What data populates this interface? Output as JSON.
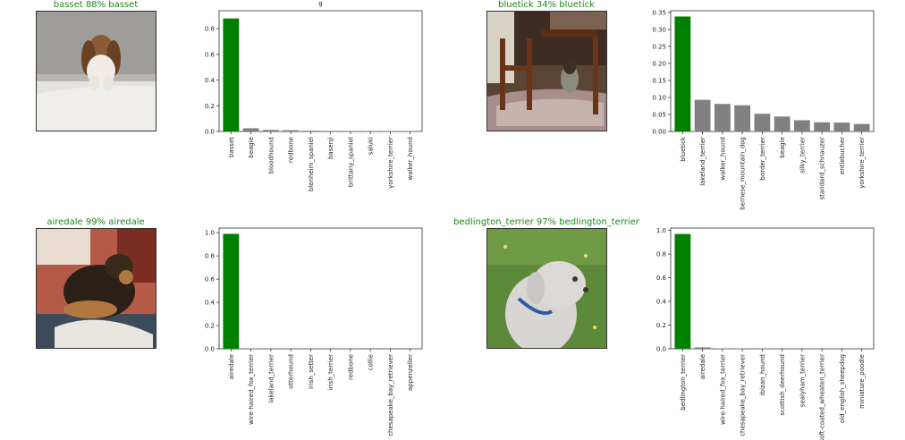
{
  "panels": [
    {
      "title": "basset 88% basset",
      "title_color": "#1a8a1a",
      "image": "basset-dog-photo",
      "stray_label": "g",
      "chart_data": {
        "type": "bar",
        "categories": [
          "basset",
          "beagle",
          "bloodhound",
          "redbone",
          "blenheim_spaniel",
          "basenji",
          "brittany_spaniel",
          "saluki",
          "yorkshire_terrier",
          "walker_hound"
        ],
        "values": [
          0.88,
          0.025,
          0.012,
          0.01,
          0.006,
          0.005,
          0.004,
          0.003,
          0.002,
          0.002
        ],
        "ylim": [
          0,
          0.94
        ],
        "yticks": [
          "0.0",
          "0.2",
          "0.4",
          "0.6",
          "0.8"
        ],
        "ytick_values": [
          0,
          0.2,
          0.4,
          0.6,
          0.8
        ],
        "highlight_color": "#008000",
        "bar_color": "#808080"
      }
    },
    {
      "title": "bluetick 34% bluetick",
      "title_color": "#1a8a1a",
      "image": "bluetick-dog-photo",
      "chart_data": {
        "type": "bar",
        "categories": [
          "bluetick",
          "lakeland_terrier",
          "walker_hound",
          "bernese_mountain_dog",
          "border_terrier",
          "beagle",
          "silky_terrier",
          "standard_schnauzer",
          "entlebucher",
          "yorkshire_terrier"
        ],
        "values": [
          0.338,
          0.093,
          0.081,
          0.077,
          0.052,
          0.044,
          0.033,
          0.027,
          0.026,
          0.022
        ],
        "ylim": [
          0,
          0.355
        ],
        "yticks": [
          "0.00",
          "0.05",
          "0.10",
          "0.15",
          "0.20",
          "0.25",
          "0.30",
          "0.35"
        ],
        "ytick_values": [
          0,
          0.05,
          0.1,
          0.15,
          0.2,
          0.25,
          0.3,
          0.35
        ],
        "highlight_color": "#008000",
        "bar_color": "#808080"
      }
    },
    {
      "title": "airedale 99% airedale",
      "title_color": "#1a8a1a",
      "image": "airedale-dog-photo",
      "chart_data": {
        "type": "bar",
        "categories": [
          "airedale",
          "wire-haired_fox_terrier",
          "lakeland_terrier",
          "otterhound",
          "irish_setter",
          "irish_terrier",
          "redbone",
          "collie",
          "chesapeake_bay_retriever",
          "appenzeller"
        ],
        "values": [
          0.99,
          0.002,
          0.001,
          0.001,
          0.001,
          0.001,
          0.001,
          0.0005,
          0.0005,
          0.0005
        ],
        "ylim": [
          0,
          1.04
        ],
        "yticks": [
          "0.0",
          "0.2",
          "0.4",
          "0.6",
          "0.8",
          "1.0"
        ],
        "ytick_values": [
          0,
          0.2,
          0.4,
          0.6,
          0.8,
          1.0
        ],
        "highlight_color": "#008000",
        "bar_color": "#808080"
      }
    },
    {
      "title": "bedlington_terrier 97% bedlington_terrier",
      "title_color": "#1a8a1a",
      "image": "bedlington-terrier-dog-photo",
      "chart_data": {
        "type": "bar",
        "categories": [
          "bedlington_terrier",
          "airedale",
          "wire-haired_fox_terrier",
          "chesapeake_bay_retriever",
          "ibizan_hound",
          "scottish_deerhound",
          "sealyham_terrier",
          "soft-coated_wheaten_terrier",
          "old_english_sheepdog",
          "miniature_poodle"
        ],
        "values": [
          0.97,
          0.012,
          0.003,
          0.002,
          0.002,
          0.001,
          0.001,
          0.001,
          0.001,
          0.001
        ],
        "ylim": [
          0,
          1.02
        ],
        "yticks": [
          "0.0",
          "0.2",
          "0.4",
          "0.6",
          "0.8",
          "1.0"
        ],
        "ytick_values": [
          0,
          0.2,
          0.4,
          0.6,
          0.8,
          1.0
        ],
        "highlight_color": "#008000",
        "bar_color": "#808080"
      }
    }
  ]
}
